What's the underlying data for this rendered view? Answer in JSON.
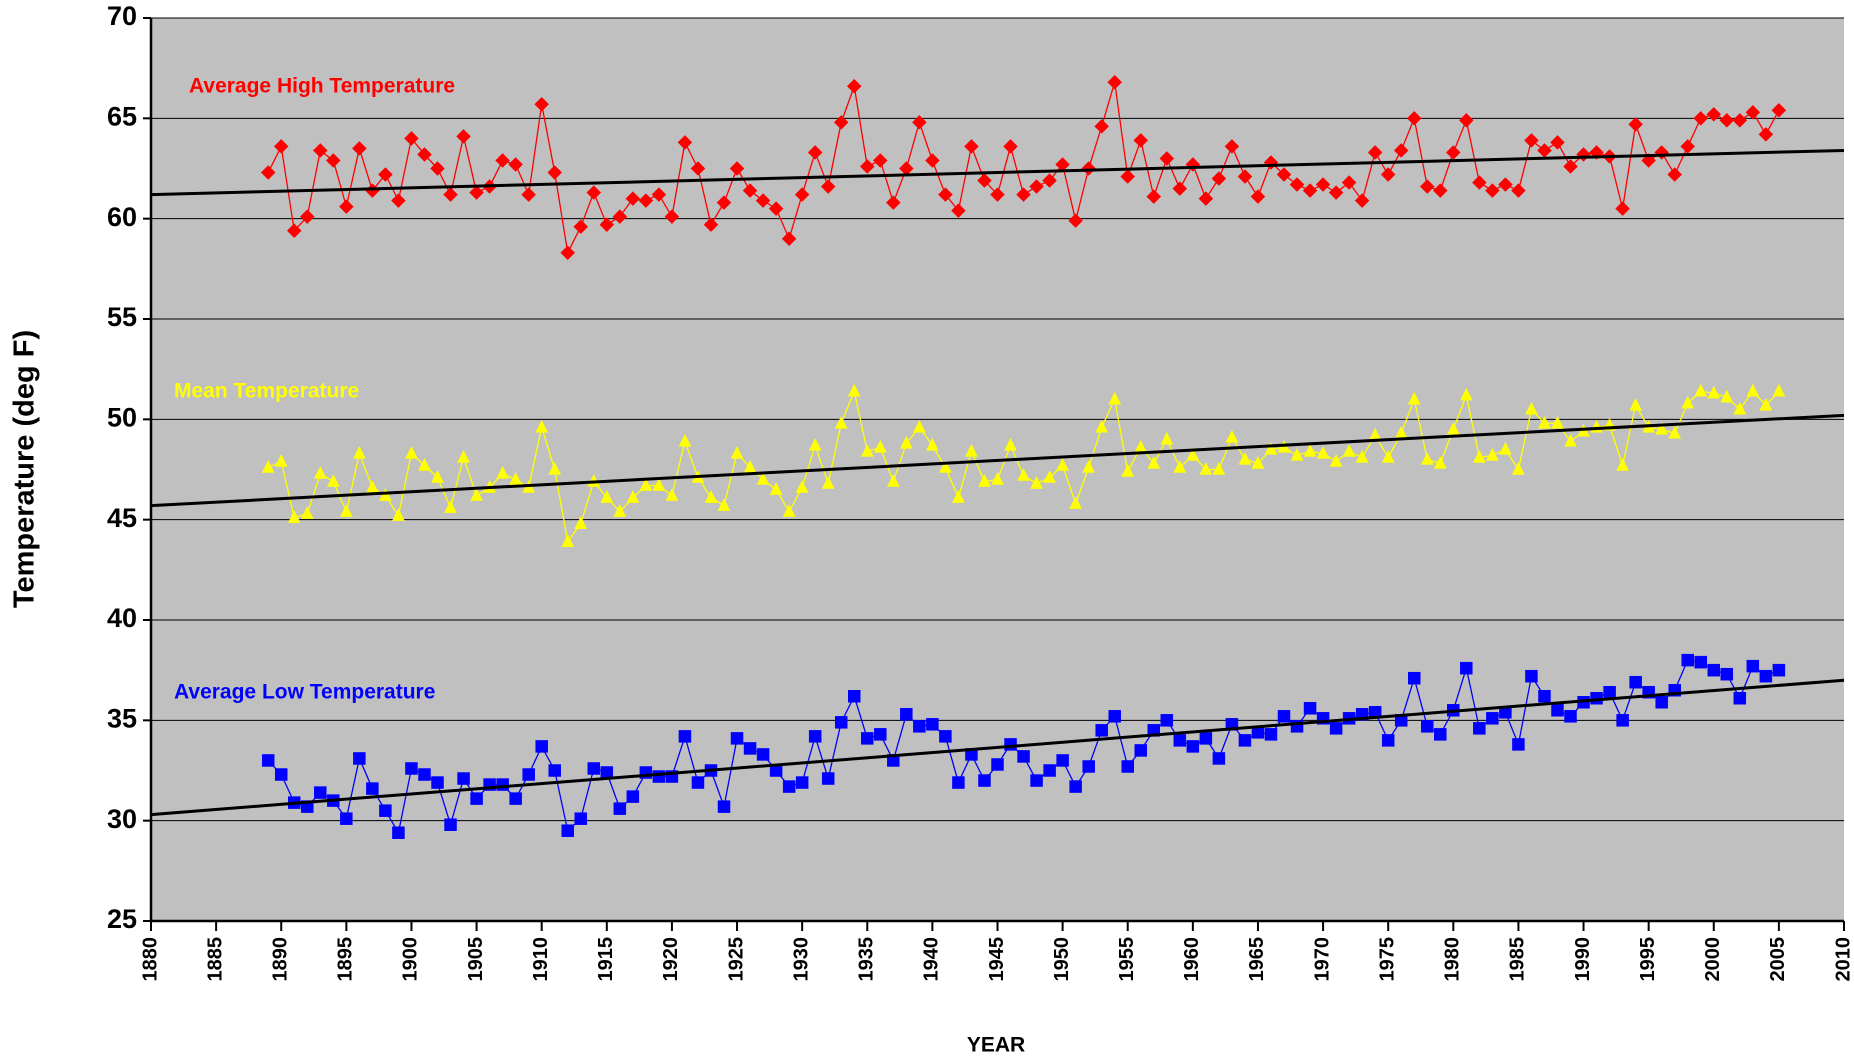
{
  "chart_data": {
    "type": "line",
    "y_label": "Temperature (deg F)",
    "x_label": "YEAR",
    "xlim": [
      1880,
      2010
    ],
    "xticks": [
      1880,
      1885,
      1890,
      1895,
      1900,
      1905,
      1910,
      1915,
      1920,
      1925,
      1930,
      1935,
      1940,
      1945,
      1950,
      1955,
      1960,
      1965,
      1970,
      1975,
      1980,
      1985,
      1990,
      1995,
      2000,
      2005,
      2010
    ],
    "ylim": [
      25,
      70
    ],
    "yticks": [
      25,
      30,
      35,
      40,
      45,
      50,
      55,
      60,
      65,
      70
    ],
    "grid": true,
    "background": "#c0c0c0",
    "x": [
      1889,
      1890,
      1891,
      1892,
      1893,
      1894,
      1895,
      1896,
      1897,
      1898,
      1899,
      1900,
      1901,
      1902,
      1903,
      1904,
      1905,
      1906,
      1907,
      1908,
      1909,
      1910,
      1911,
      1912,
      1913,
      1914,
      1915,
      1916,
      1917,
      1918,
      1919,
      1920,
      1921,
      1922,
      1923,
      1924,
      1925,
      1926,
      1927,
      1928,
      1929,
      1930,
      1931,
      1932,
      1933,
      1934,
      1935,
      1936,
      1937,
      1938,
      1939,
      1940,
      1941,
      1942,
      1943,
      1944,
      1945,
      1946,
      1947,
      1948,
      1949,
      1950,
      1951,
      1952,
      1953,
      1954,
      1955,
      1956,
      1957,
      1958,
      1959,
      1960,
      1961,
      1962,
      1963,
      1964,
      1965,
      1966,
      1967,
      1968,
      1969,
      1970,
      1971,
      1972,
      1973,
      1974,
      1975,
      1976,
      1977,
      1978,
      1979,
      1980,
      1981,
      1982,
      1983,
      1984,
      1985,
      1986,
      1987,
      1988,
      1989,
      1990,
      1991,
      1992,
      1993,
      1994,
      1995,
      1996,
      1997,
      1998,
      1999,
      2000,
      2001,
      2002,
      2003,
      2004,
      2005
    ],
    "series": [
      {
        "name": "Average High Temperature",
        "color": "#ff0000",
        "marker": "diamond",
        "values": [
          62.3,
          63.6,
          59.4,
          60.1,
          63.4,
          62.9,
          60.6,
          63.5,
          61.4,
          62.2,
          60.9,
          64.0,
          63.2,
          62.5,
          61.2,
          64.1,
          61.3,
          61.6,
          62.9,
          62.7,
          61.2,
          65.7,
          62.3,
          58.3,
          59.6,
          61.3,
          59.7,
          60.1,
          61.0,
          60.9,
          61.2,
          60.1,
          63.8,
          62.5,
          59.7,
          60.8,
          62.5,
          61.4,
          60.9,
          60.5,
          59.0,
          61.2,
          63.3,
          61.6,
          64.8,
          66.6,
          62.6,
          62.9,
          60.8,
          62.5,
          64.8,
          62.9,
          61.2,
          60.4,
          63.6,
          61.9,
          61.2,
          63.6,
          61.2,
          61.6,
          61.9,
          62.7,
          59.9,
          62.5,
          64.6,
          66.8,
          62.1,
          63.9,
          61.1,
          63.0,
          61.5,
          62.7,
          61.0,
          62.0,
          63.6,
          62.1,
          61.1,
          62.8,
          62.2,
          61.7,
          61.4,
          61.7,
          61.3,
          61.8,
          60.9,
          63.3,
          62.2,
          63.4,
          65.0,
          61.6,
          61.4,
          63.3,
          64.9,
          61.8,
          61.4,
          61.7,
          61.4,
          63.9,
          63.4,
          63.8,
          62.6,
          63.2,
          63.3,
          63.1,
          60.5,
          64.7,
          62.9,
          63.3,
          62.2,
          63.6,
          65.0,
          65.2,
          64.9,
          64.9,
          65.3,
          64.2,
          65.4
        ]
      },
      {
        "name": "Mean Temperature",
        "color": "#ffff00",
        "marker": "triangle",
        "values": [
          47.6,
          47.9,
          45.1,
          45.3,
          47.3,
          46.9,
          45.4,
          48.3,
          46.6,
          46.2,
          45.2,
          48.3,
          47.7,
          47.1,
          45.6,
          48.1,
          46.2,
          46.6,
          47.3,
          47.0,
          46.6,
          49.6,
          47.5,
          43.9,
          44.8,
          46.9,
          46.1,
          45.4,
          46.1,
          46.7,
          46.7,
          46.2,
          48.9,
          47.1,
          46.1,
          45.7,
          48.3,
          47.6,
          47.0,
          46.5,
          45.4,
          46.6,
          48.7,
          46.8,
          49.8,
          51.4,
          48.4,
          48.6,
          46.9,
          48.8,
          49.6,
          48.7,
          47.6,
          46.1,
          48.4,
          46.9,
          47.0,
          48.7,
          47.2,
          46.8,
          47.1,
          47.7,
          45.8,
          47.6,
          49.6,
          51.0,
          47.4,
          48.6,
          47.8,
          49.0,
          47.6,
          48.2,
          47.5,
          47.5,
          49.1,
          48.0,
          47.8,
          48.5,
          48.6,
          48.2,
          48.4,
          48.3,
          47.9,
          48.4,
          48.1,
          49.2,
          48.1,
          49.3,
          51.0,
          48.0,
          47.8,
          49.5,
          51.2,
          48.1,
          48.2,
          48.5,
          47.5,
          50.5,
          49.8,
          49.8,
          48.9,
          49.4,
          49.6,
          49.7,
          47.7,
          50.7,
          49.6,
          49.5,
          49.3,
          50.8,
          51.4,
          51.3,
          51.1,
          50.5,
          51.4,
          50.7,
          51.4
        ]
      },
      {
        "name": "Average Low Temperature",
        "color": "#0000ff",
        "marker": "square",
        "values": [
          33.0,
          32.3,
          30.9,
          30.7,
          31.4,
          31.0,
          30.1,
          33.1,
          31.6,
          30.5,
          29.4,
          32.6,
          32.3,
          31.9,
          29.8,
          32.1,
          31.1,
          31.8,
          31.8,
          31.1,
          32.3,
          33.7,
          32.5,
          29.5,
          30.1,
          32.6,
          32.4,
          30.6,
          31.2,
          32.4,
          32.2,
          32.2,
          34.2,
          31.9,
          32.5,
          30.7,
          34.1,
          33.6,
          33.3,
          32.5,
          31.7,
          31.9,
          34.2,
          32.1,
          34.9,
          36.2,
          34.1,
          34.3,
          33.0,
          35.3,
          34.7,
          34.8,
          34.2,
          31.9,
          33.3,
          32.0,
          32.8,
          33.8,
          33.2,
          32.0,
          32.5,
          33.0,
          31.7,
          32.7,
          34.5,
          35.2,
          32.7,
          33.5,
          34.5,
          35.0,
          34.0,
          33.7,
          34.1,
          33.1,
          34.8,
          34.0,
          34.4,
          34.3,
          35.2,
          34.7,
          35.6,
          35.1,
          34.6,
          35.1,
          35.3,
          35.4,
          34.0,
          35.0,
          37.1,
          34.7,
          34.3,
          35.5,
          37.6,
          34.6,
          35.1,
          35.4,
          33.8,
          37.2,
          36.2,
          35.5,
          35.2,
          35.9,
          36.1,
          36.4,
          35.0,
          36.9,
          36.4,
          35.9,
          36.5,
          38.0,
          37.9,
          37.5,
          37.3,
          36.1,
          37.7,
          37.2,
          37.5
        ]
      }
    ],
    "trend_lines": [
      {
        "color": "#000000",
        "x": [
          1880,
          2010
        ],
        "values": [
          61.2,
          63.4
        ]
      },
      {
        "color": "#000000",
        "x": [
          1880,
          2010
        ],
        "values": [
          45.7,
          50.2
        ]
      },
      {
        "color": "#000000",
        "x": [
          1880,
          2010
        ],
        "values": [
          30.3,
          37.0
        ]
      }
    ]
  }
}
